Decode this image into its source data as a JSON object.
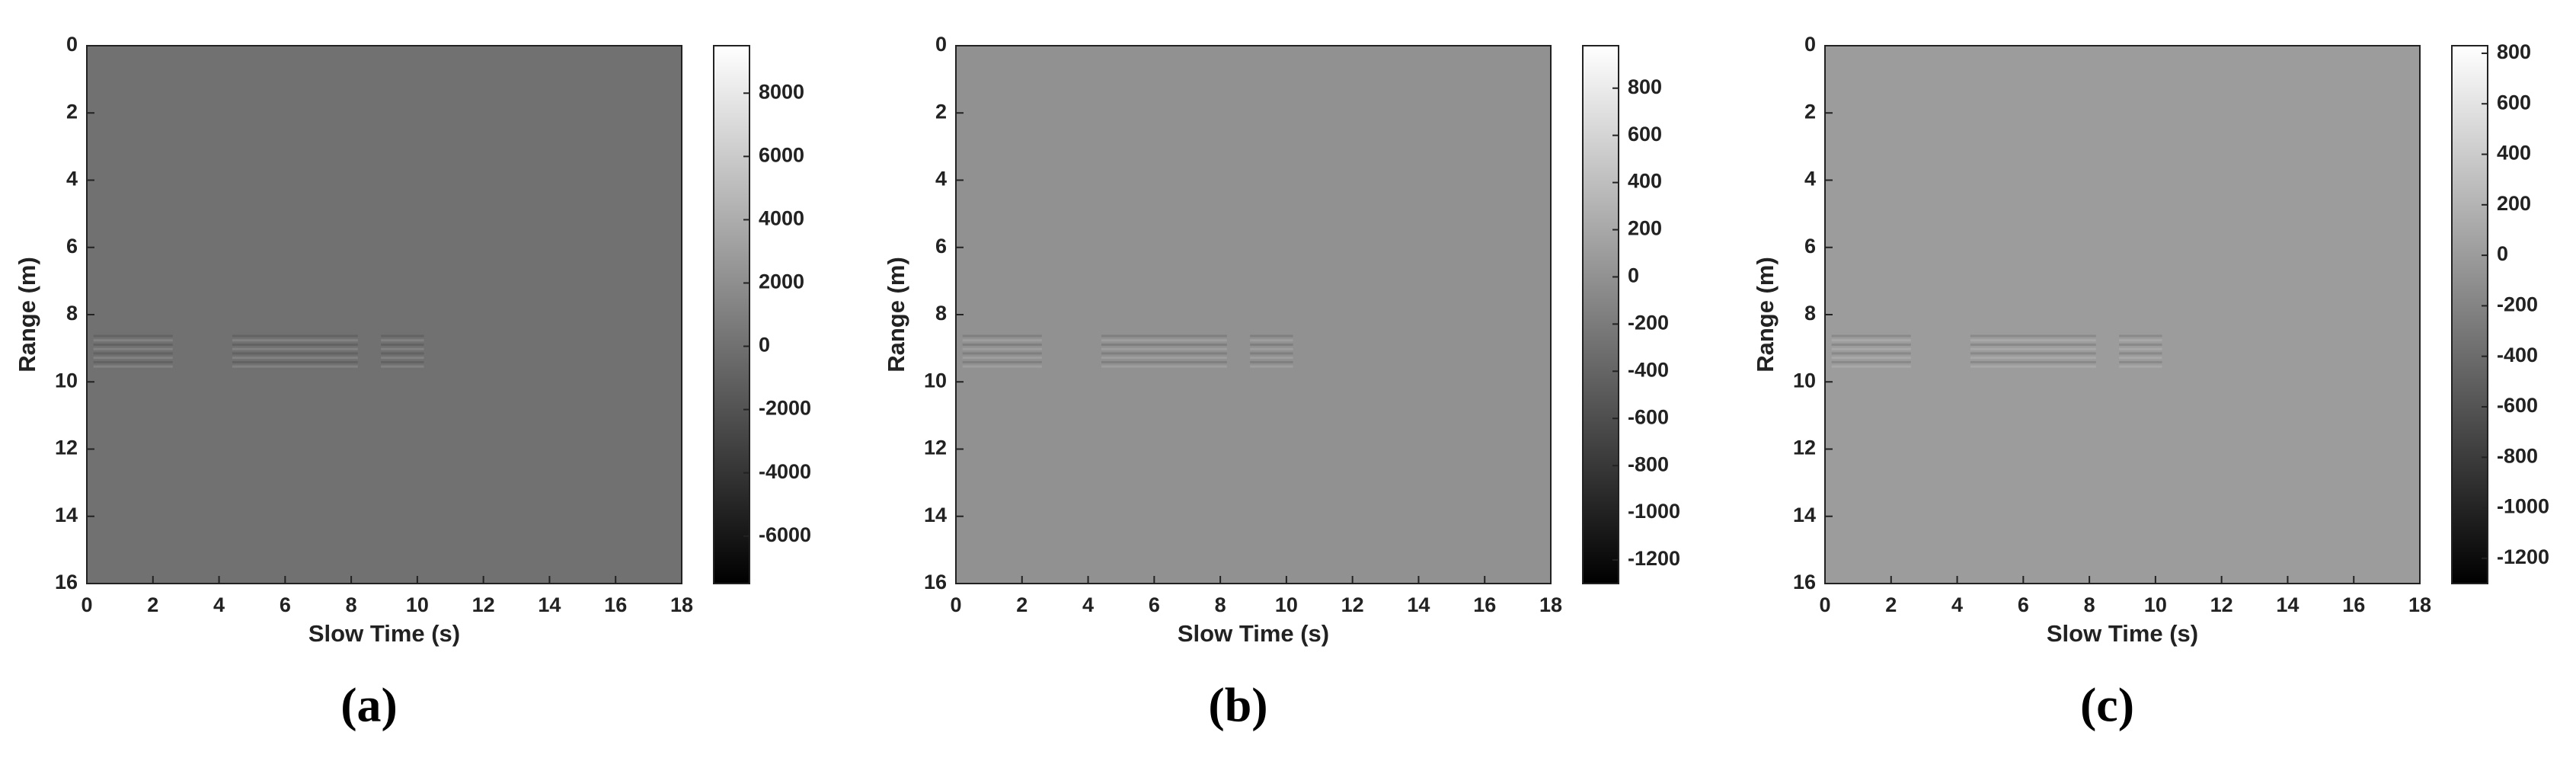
{
  "chart_data": [
    {
      "type": "heatmap",
      "caption": "(a)",
      "xlabel": "Slow Time (s)",
      "ylabel": "Range (m)",
      "colormap": "gray",
      "xlim": [
        0,
        18
      ],
      "xticks": [
        0,
        2,
        4,
        6,
        8,
        10,
        12,
        14,
        16,
        18
      ],
      "ylim": [
        16,
        0
      ],
      "yticks": [
        0,
        2,
        4,
        6,
        8,
        10,
        12,
        14,
        16
      ],
      "clim": [
        -7500,
        9500
      ],
      "cticks": [
        -6000,
        -4000,
        -2000,
        0,
        2000,
        4000,
        6000,
        8000
      ]
    },
    {
      "type": "heatmap",
      "caption": "(b)",
      "xlabel": "Slow Time (s)",
      "ylabel": "Range (m)",
      "colormap": "gray",
      "xlim": [
        0,
        18
      ],
      "xticks": [
        0,
        2,
        4,
        6,
        8,
        10,
        12,
        14,
        16,
        18
      ],
      "ylim": [
        16,
        0
      ],
      "yticks": [
        0,
        2,
        4,
        6,
        8,
        10,
        12,
        14,
        16
      ],
      "clim": [
        -1300,
        980
      ],
      "cticks": [
        -1200,
        -1000,
        -800,
        -600,
        -400,
        -200,
        0,
        200,
        400,
        600,
        800
      ]
    },
    {
      "type": "heatmap",
      "caption": "(c)",
      "xlabel": "Slow Time (s)",
      "ylabel": "Range (m)",
      "colormap": "gray",
      "xlim": [
        0,
        18
      ],
      "xticks": [
        0,
        2,
        4,
        6,
        8,
        10,
        12,
        14,
        16,
        18
      ],
      "ylim": [
        16,
        0
      ],
      "yticks": [
        0,
        2,
        4,
        6,
        8,
        10,
        12,
        14,
        16
      ],
      "clim": [
        -1300,
        830
      ],
      "cticks": [
        -1200,
        -1000,
        -800,
        -600,
        -400,
        -200,
        0,
        200,
        400,
        600,
        800
      ]
    }
  ]
}
